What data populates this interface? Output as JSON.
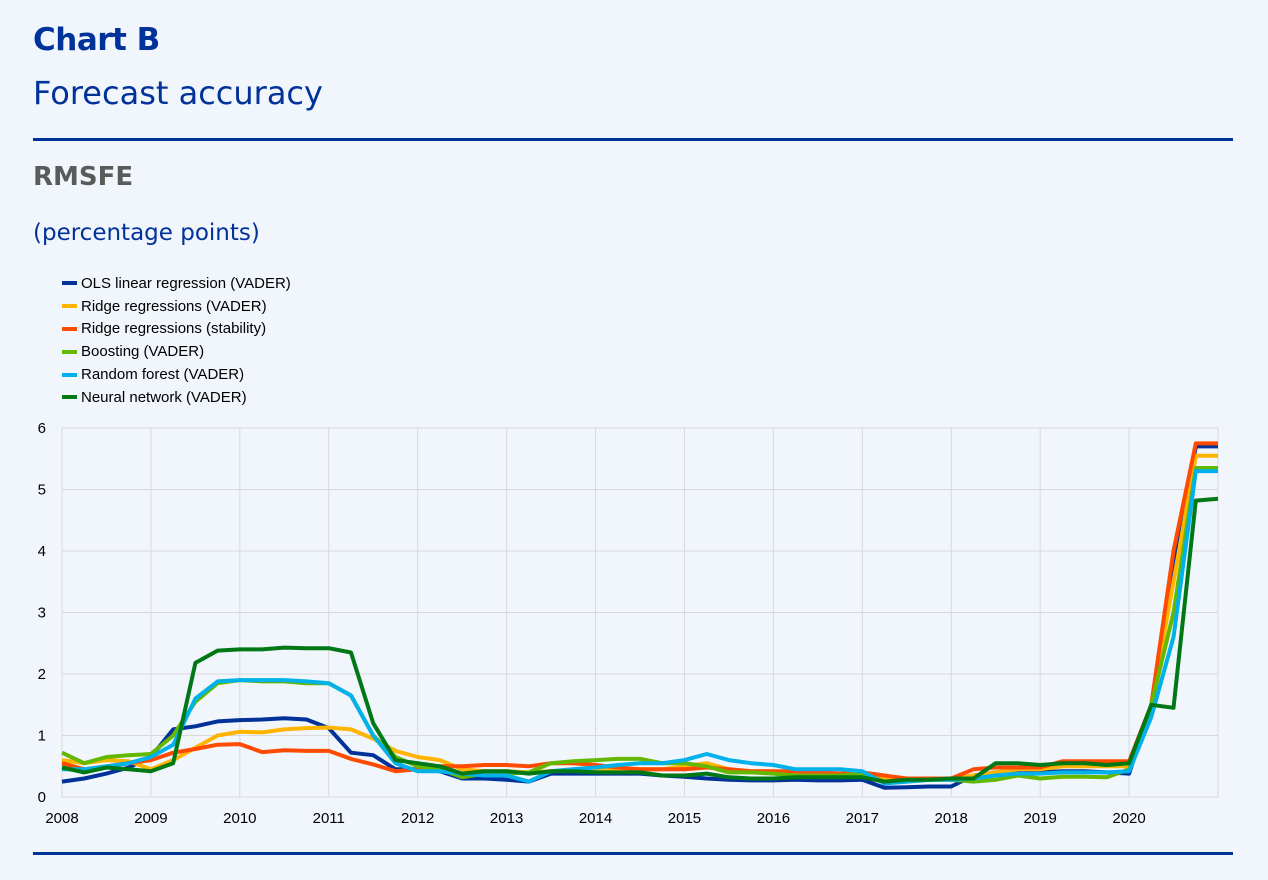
{
  "header": {
    "title": "Chart B",
    "subtitle": "Forecast accuracy",
    "metric": "RMSFE",
    "unit": "(percentage points)"
  },
  "colors": {
    "brand": "#003299",
    "grid": "#d9d9d9",
    "background": "#f1f5fc"
  },
  "chart_data": {
    "type": "line",
    "xlim": [
      2008,
      2021
    ],
    "ylim": [
      0,
      6
    ],
    "x_ticks": [
      "2008",
      "2009",
      "2010",
      "2011",
      "2012",
      "2013",
      "2014",
      "2015",
      "2016",
      "2017",
      "2018",
      "2019",
      "2020"
    ],
    "y_ticks": [
      "0",
      "1",
      "2",
      "3",
      "4",
      "5",
      "6"
    ],
    "grid": true,
    "legend_position": "top-left",
    "x": [
      2008.0,
      2008.25,
      2008.5,
      2008.75,
      2009.0,
      2009.25,
      2009.5,
      2009.75,
      2010.0,
      2010.25,
      2010.5,
      2010.75,
      2011.0,
      2011.25,
      2011.5,
      2011.75,
      2012.0,
      2012.25,
      2012.5,
      2012.75,
      2013.0,
      2013.25,
      2013.5,
      2013.75,
      2014.0,
      2014.25,
      2014.5,
      2014.75,
      2015.0,
      2015.25,
      2015.5,
      2015.75,
      2016.0,
      2016.25,
      2016.5,
      2016.75,
      2017.0,
      2017.25,
      2017.5,
      2017.75,
      2018.0,
      2018.25,
      2018.5,
      2018.75,
      2019.0,
      2019.25,
      2019.5,
      2019.75,
      2020.0,
      2020.25,
      2020.5,
      2020.75,
      2021.0
    ],
    "series": [
      {
        "name": "OLS linear regression (VADER)",
        "color": "#003299",
        "values": [
          0.25,
          0.3,
          0.38,
          0.48,
          0.65,
          1.1,
          1.15,
          1.23,
          1.25,
          1.26,
          1.28,
          1.26,
          1.12,
          0.72,
          0.68,
          0.45,
          0.45,
          0.42,
          0.3,
          0.3,
          0.28,
          0.25,
          0.38,
          0.38,
          0.38,
          0.38,
          0.38,
          0.35,
          0.33,
          0.3,
          0.28,
          0.27,
          0.27,
          0.28,
          0.27,
          0.27,
          0.28,
          0.15,
          0.16,
          0.17,
          0.17,
          0.35,
          0.4,
          0.4,
          0.4,
          0.42,
          0.42,
          0.4,
          0.38,
          1.5,
          3.7,
          5.7,
          5.7
        ]
      },
      {
        "name": "Ridge regressions (VADER)",
        "color": "#ffb400",
        "values": [
          0.6,
          0.55,
          0.6,
          0.58,
          0.45,
          0.6,
          0.8,
          1.0,
          1.06,
          1.05,
          1.1,
          1.12,
          1.13,
          1.1,
          0.95,
          0.75,
          0.65,
          0.6,
          0.45,
          0.42,
          0.42,
          0.4,
          0.42,
          0.45,
          0.45,
          0.45,
          0.45,
          0.45,
          0.5,
          0.55,
          0.45,
          0.42,
          0.42,
          0.4,
          0.4,
          0.38,
          0.38,
          0.3,
          0.3,
          0.3,
          0.3,
          0.35,
          0.4,
          0.45,
          0.45,
          0.5,
          0.5,
          0.5,
          0.5,
          1.5,
          3.5,
          5.55,
          5.55
        ]
      },
      {
        "name": "Ridge regressions (stability)",
        "color": "#ff4b00",
        "values": [
          0.55,
          0.45,
          0.5,
          0.55,
          0.6,
          0.72,
          0.78,
          0.85,
          0.86,
          0.73,
          0.76,
          0.75,
          0.75,
          0.62,
          0.53,
          0.42,
          0.45,
          0.5,
          0.5,
          0.52,
          0.52,
          0.5,
          0.55,
          0.55,
          0.52,
          0.48,
          0.45,
          0.45,
          0.45,
          0.48,
          0.45,
          0.42,
          0.42,
          0.42,
          0.4,
          0.38,
          0.4,
          0.35,
          0.3,
          0.3,
          0.3,
          0.45,
          0.48,
          0.48,
          0.48,
          0.58,
          0.58,
          0.58,
          0.58,
          1.5,
          4.0,
          5.75,
          5.75
        ]
      },
      {
        "name": "Boosting (VADER)",
        "color": "#65b800",
        "values": [
          0.72,
          0.55,
          0.65,
          0.68,
          0.7,
          1.0,
          1.55,
          1.85,
          1.9,
          1.88,
          1.88,
          1.85,
          1.85,
          1.65,
          1.0,
          0.65,
          0.5,
          0.45,
          0.32,
          0.38,
          0.38,
          0.4,
          0.55,
          0.58,
          0.6,
          0.62,
          0.62,
          0.55,
          0.55,
          0.5,
          0.4,
          0.4,
          0.38,
          0.35,
          0.35,
          0.35,
          0.38,
          0.25,
          0.25,
          0.28,
          0.28,
          0.25,
          0.28,
          0.35,
          0.3,
          0.33,
          0.33,
          0.32,
          0.45,
          1.5,
          3.0,
          5.35,
          5.35
        ]
      },
      {
        "name": "Random forest (VADER)",
        "color": "#00b1ea",
        "values": [
          0.45,
          0.45,
          0.5,
          0.55,
          0.65,
          0.85,
          1.6,
          1.88,
          1.9,
          1.9,
          1.9,
          1.88,
          1.85,
          1.65,
          1.0,
          0.55,
          0.42,
          0.42,
          0.38,
          0.35,
          0.35,
          0.25,
          0.42,
          0.45,
          0.48,
          0.52,
          0.55,
          0.55,
          0.6,
          0.7,
          0.6,
          0.55,
          0.52,
          0.45,
          0.45,
          0.45,
          0.42,
          0.22,
          0.25,
          0.28,
          0.28,
          0.3,
          0.35,
          0.38,
          0.38,
          0.4,
          0.4,
          0.4,
          0.42,
          1.3,
          2.6,
          5.3,
          5.3
        ]
      },
      {
        "name": "Neural network (VADER)",
        "color": "#007816",
        "values": [
          0.48,
          0.4,
          0.48,
          0.45,
          0.42,
          0.55,
          2.18,
          2.38,
          2.4,
          2.4,
          2.43,
          2.42,
          2.42,
          2.35,
          1.2,
          0.6,
          0.55,
          0.5,
          0.38,
          0.42,
          0.42,
          0.38,
          0.42,
          0.42,
          0.4,
          0.4,
          0.4,
          0.35,
          0.35,
          0.38,
          0.32,
          0.3,
          0.3,
          0.32,
          0.32,
          0.32,
          0.32,
          0.25,
          0.28,
          0.28,
          0.3,
          0.3,
          0.55,
          0.55,
          0.52,
          0.55,
          0.55,
          0.52,
          0.55,
          1.5,
          1.45,
          4.82,
          4.85
        ]
      }
    ]
  }
}
